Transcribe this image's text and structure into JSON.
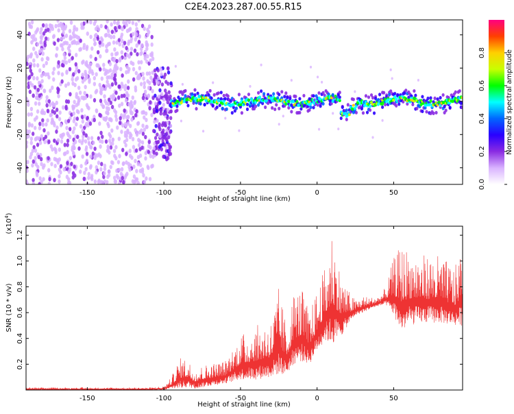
{
  "title": "C2E4.2023.287.00.55.R15",
  "chart_data": [
    {
      "type": "heatmap",
      "name": "spectrogram",
      "xlabel": "Height of straight line (km)",
      "ylabel": "Frequency (Hz)",
      "xlim": [
        -190,
        95
      ],
      "ylim": [
        -50,
        49
      ],
      "xticks": [
        -150,
        -100,
        -50,
        0,
        50
      ],
      "yticks": [
        -40,
        -20,
        0,
        20,
        40
      ],
      "colorbar": {
        "label": "Normalized spectral amplitude",
        "range": [
          0.0,
          1.0
        ],
        "ticks": [
          0.0,
          0.2,
          0.4,
          0.6,
          0.8
        ],
        "colors": [
          "#ffffff",
          "#d9b3ff",
          "#8a2be2",
          "#2a00ff",
          "#0066ff",
          "#00ffff",
          "#00ff00",
          "#c8ff00",
          "#ffd000",
          "#ff4000",
          "#ff0080"
        ]
      },
      "regions": [
        {
          "x_range": [
            -190,
            -107
          ],
          "freq_range": [
            -50,
            49
          ],
          "amplitude": 0.15,
          "pattern": "broadband noise"
        },
        {
          "x_range": [
            -107,
            -95
          ],
          "freq_range": [
            -35,
            20
          ],
          "amplitude": 0.25,
          "pattern": "transition"
        },
        {
          "x_range": [
            -95,
            95
          ],
          "freq_range": [
            -8,
            6
          ],
          "amplitude": 0.5,
          "pattern": "narrow band near 0 Hz"
        }
      ]
    },
    {
      "type": "line",
      "name": "snr",
      "xlabel": "Height of straight line (km)",
      "ylabel": "SNR (10 * v/v)",
      "scale_label": "(x10",
      "scale_exponent": "4",
      "scale_label_close": ")",
      "color": "#ee3333",
      "xlim": [
        -190,
        95
      ],
      "ylim": [
        0,
        1.27
      ],
      "xticks": [
        -150,
        -100,
        -50,
        0,
        50
      ],
      "yticks": [
        0.2,
        0.4,
        0.6,
        0.8,
        1.0,
        1.2
      ],
      "envelope": {
        "x": [
          -190,
          -150,
          -110,
          -100,
          -95,
          -90,
          -85,
          -80,
          -70,
          -60,
          -50,
          -40,
          -30,
          -25,
          -20,
          -15,
          -10,
          -5,
          0,
          5,
          10,
          15,
          20,
          25,
          30,
          35,
          40,
          45,
          50,
          55,
          60,
          70,
          80,
          90,
          95
        ],
        "min": [
          0.0,
          0.0,
          0.0,
          0.0,
          0.01,
          0.01,
          0.02,
          0.01,
          0.03,
          0.05,
          0.08,
          0.08,
          0.1,
          0.12,
          0.12,
          0.2,
          0.22,
          0.2,
          0.3,
          0.38,
          0.35,
          0.4,
          0.5,
          0.58,
          0.6,
          0.63,
          0.65,
          0.66,
          0.58,
          0.45,
          0.5,
          0.52,
          0.52,
          0.5,
          0.5
        ],
        "max": [
          0.02,
          0.02,
          0.02,
          0.03,
          0.1,
          0.25,
          0.25,
          0.17,
          0.21,
          0.23,
          0.43,
          0.5,
          0.55,
          0.8,
          0.5,
          0.78,
          0.8,
          0.6,
          0.78,
          0.95,
          1.28,
          0.93,
          0.78,
          0.7,
          0.73,
          0.72,
          0.73,
          0.8,
          1.03,
          1.13,
          1.1,
          1.05,
          1.05,
          0.95,
          1.15
        ]
      }
    }
  ]
}
